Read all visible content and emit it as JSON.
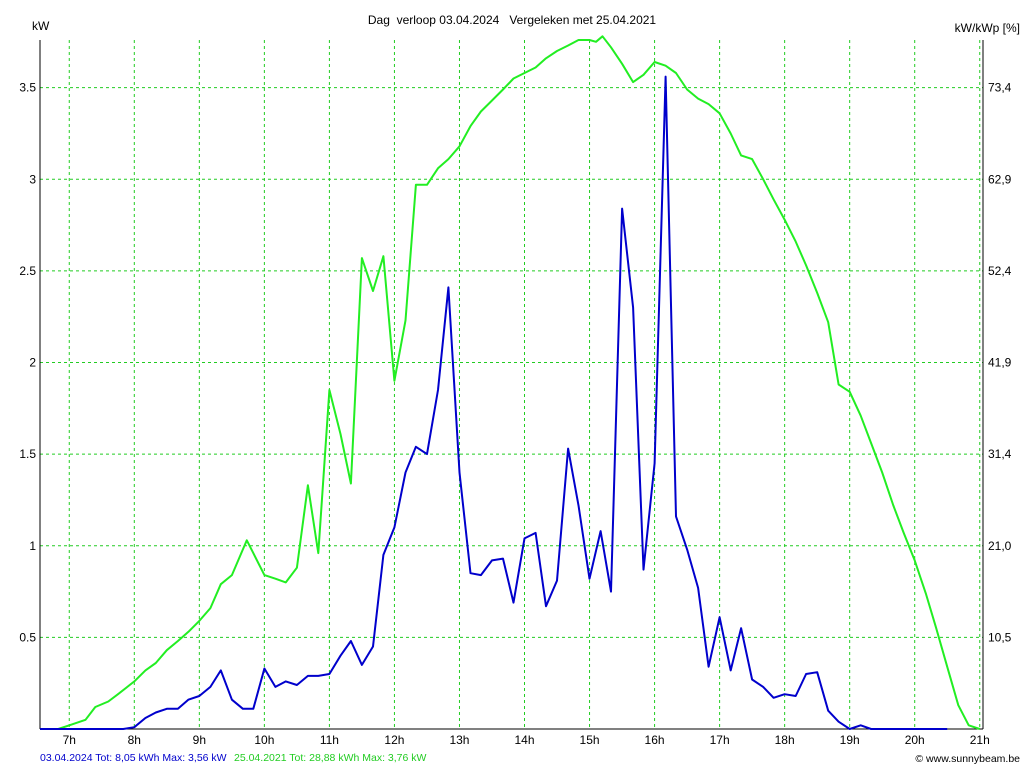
{
  "chart_data": {
    "type": "line",
    "title": "Dag  verloop 03.04.2024   Vergeleken met 25.04.2021",
    "ylabel_left": "kW",
    "ylabel_right": "kW/kWp [%]",
    "xlim": [
      6.55,
      21.05
    ],
    "ylim": [
      0,
      3.76
    ],
    "x_ticks": [
      7,
      8,
      9,
      10,
      11,
      12,
      13,
      14,
      15,
      16,
      17,
      18,
      19,
      20,
      21
    ],
    "x_tick_labels": [
      "7h",
      "8h",
      "9h",
      "10h",
      "11h",
      "12h",
      "13h",
      "14h",
      "15h",
      "16h",
      "17h",
      "18h",
      "19h",
      "20h",
      "21h"
    ],
    "y_ticks": [
      0.5,
      1,
      1.5,
      2,
      2.5,
      3,
      3.5
    ],
    "y_tick_labels": [
      "0.5",
      "1",
      "1.5",
      "2",
      "2.5",
      "3",
      "3.5"
    ],
    "y2_tick_labels": [
      "10,5",
      "21,0",
      "31,4",
      "41,9",
      "52,4",
      "62,9",
      "73,4"
    ],
    "grid": true,
    "colors": {
      "grid": "#22cc22",
      "series_2024": "#0000cc",
      "series_2021": "#22ee22",
      "axis": "#000000"
    },
    "series": [
      {
        "key": "series_2021",
        "x": [
          6.55,
          6.83,
          7.0,
          7.25,
          7.4,
          7.6,
          7.75,
          8.0,
          8.17,
          8.33,
          8.5,
          8.67,
          8.83,
          9.0,
          9.17,
          9.33,
          9.5,
          9.67,
          9.73,
          9.83,
          10.0,
          10.17,
          10.33,
          10.5,
          10.67,
          10.83,
          11.0,
          11.17,
          11.33,
          11.5,
          11.67,
          11.83,
          12.0,
          12.17,
          12.33,
          12.5,
          12.67,
          12.83,
          13.0,
          13.17,
          13.33,
          13.5,
          13.67,
          13.83,
          14.0,
          14.17,
          14.33,
          14.5,
          14.67,
          14.83,
          15.0,
          15.1,
          15.2,
          15.33,
          15.5,
          15.67,
          15.83,
          16.0,
          16.17,
          16.33,
          16.5,
          16.67,
          16.83,
          17.0,
          17.17,
          17.33,
          17.5,
          17.67,
          17.83,
          18.0,
          18.17,
          18.33,
          18.5,
          18.67,
          18.83,
          19.0,
          19.17,
          19.33,
          19.5,
          19.67,
          19.83,
          20.0,
          20.17,
          20.33,
          20.5,
          20.67,
          20.83,
          21.0
        ],
        "y": [
          0,
          0,
          0.02,
          0.05,
          0.12,
          0.15,
          0.19,
          0.26,
          0.32,
          0.36,
          0.43,
          0.48,
          0.53,
          0.59,
          0.66,
          0.79,
          0.84,
          0.98,
          1.03,
          0.96,
          0.84,
          0.82,
          0.8,
          0.88,
          1.33,
          0.96,
          1.85,
          1.61,
          1.34,
          2.57,
          2.39,
          2.58,
          1.9,
          2.23,
          2.97,
          2.97,
          3.06,
          3.11,
          3.18,
          3.29,
          3.37,
          3.43,
          3.49,
          3.55,
          3.58,
          3.61,
          3.66,
          3.7,
          3.73,
          3.76,
          3.76,
          3.75,
          3.78,
          3.72,
          3.63,
          3.53,
          3.57,
          3.64,
          3.62,
          3.58,
          3.49,
          3.44,
          3.41,
          3.36,
          3.25,
          3.13,
          3.11,
          3.0,
          2.89,
          2.78,
          2.66,
          2.53,
          2.38,
          2.22,
          1.88,
          1.84,
          1.71,
          1.56,
          1.4,
          1.22,
          1.07,
          0.92,
          0.74,
          0.55,
          0.34,
          0.13,
          0.02,
          0
        ]
      },
      {
        "key": "series_2024",
        "x": [
          6.55,
          7.83,
          8.0,
          8.17,
          8.33,
          8.5,
          8.67,
          8.83,
          9.0,
          9.17,
          9.33,
          9.5,
          9.67,
          9.83,
          10.0,
          10.17,
          10.33,
          10.5,
          10.67,
          10.83,
          11.0,
          11.17,
          11.33,
          11.5,
          11.67,
          11.83,
          12.0,
          12.17,
          12.33,
          12.5,
          12.67,
          12.83,
          13.0,
          13.17,
          13.33,
          13.5,
          13.67,
          13.83,
          14.0,
          14.17,
          14.33,
          14.5,
          14.67,
          14.83,
          15.0,
          15.17,
          15.33,
          15.5,
          15.67,
          15.83,
          16.0,
          16.17,
          16.33,
          16.5,
          16.67,
          16.83,
          17.0,
          17.17,
          17.33,
          17.5,
          17.67,
          17.83,
          18.0,
          18.17,
          18.33,
          18.5,
          18.67,
          18.83,
          19.0,
          19.17,
          19.33,
          19.5,
          19.67,
          19.83,
          20.0,
          20.17,
          20.33,
          20.5
        ],
        "y": [
          0,
          0,
          0.01,
          0.06,
          0.09,
          0.11,
          0.11,
          0.16,
          0.18,
          0.23,
          0.32,
          0.16,
          0.11,
          0.11,
          0.33,
          0.23,
          0.26,
          0.24,
          0.29,
          0.29,
          0.3,
          0.4,
          0.48,
          0.35,
          0.45,
          0.95,
          1.1,
          1.4,
          1.54,
          1.5,
          1.85,
          2.41,
          1.4,
          0.85,
          0.84,
          0.92,
          0.93,
          0.69,
          1.04,
          1.07,
          0.67,
          0.81,
          1.53,
          1.22,
          0.82,
          1.08,
          0.75,
          2.84,
          2.3,
          0.87,
          1.45,
          3.56,
          1.16,
          0.98,
          0.77,
          0.34,
          0.61,
          0.32,
          0.55,
          0.27,
          0.23,
          0.17,
          0.19,
          0.18,
          0.3,
          0.31,
          0.1,
          0.04,
          0.0,
          0.02,
          0.0,
          0.0,
          0.0,
          0.0,
          0.0,
          0.0,
          0.0,
          0.0
        ]
      }
    ]
  },
  "footer": {
    "legend_2024": "03.04.2024 Tot: 8,05 kWh Max: 3,56 kW",
    "legend_2021": "25.04.2021 Tot: 28,88 kWh Max: 3,76 kW",
    "credit": "© www.sunnybeam.be"
  }
}
